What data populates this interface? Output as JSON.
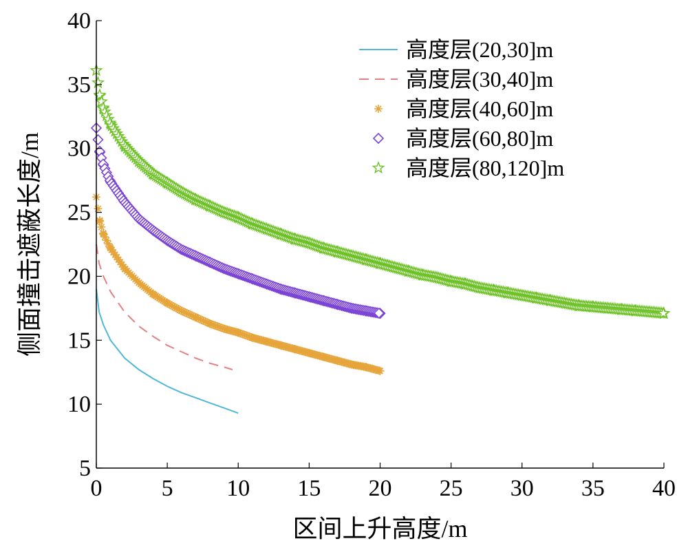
{
  "chart_data": {
    "type": "scatter",
    "title": "",
    "xlabel": "区间上升高度/m",
    "ylabel": "侧面撞击遮蔽长度/m",
    "xlim": [
      0,
      40
    ],
    "ylim": [
      5,
      40
    ],
    "xticks": [
      "0",
      "5",
      "10",
      "15",
      "20",
      "25",
      "30",
      "35",
      "40"
    ],
    "yticks": [
      "5",
      "10",
      "15",
      "20",
      "25",
      "30",
      "35",
      "40"
    ],
    "grid": false,
    "legend_position": "top-right",
    "series": [
      {
        "name": "高度层(20,30]m",
        "style": "solid-line",
        "color": "#4fb8d8",
        "x": [
          0,
          0.2,
          0.5,
          1,
          2,
          3,
          4,
          5,
          6,
          7,
          8,
          9,
          10
        ],
        "y": [
          19.0,
          17.2,
          16.2,
          15.0,
          13.6,
          12.7,
          12.0,
          11.4,
          10.9,
          10.5,
          10.1,
          9.7,
          9.3
        ]
      },
      {
        "name": "高度层(30,40]m",
        "style": "dashed-line",
        "color": "#e48080",
        "x": [
          0,
          0.2,
          0.5,
          1,
          2,
          3,
          4,
          5,
          6,
          7,
          8,
          9,
          9.6
        ],
        "y": [
          22.5,
          21.0,
          20.0,
          18.8,
          17.2,
          16.1,
          15.3,
          14.6,
          14.1,
          13.6,
          13.2,
          12.9,
          12.7
        ]
      },
      {
        "name": "高度层(40,60]m",
        "style": "asterisk-marker",
        "color": "#e6a53a",
        "x": [
          0,
          0.25,
          0.5,
          1,
          2,
          3,
          4,
          5,
          6,
          7,
          8,
          9,
          10,
          11,
          12,
          13,
          14,
          15,
          16,
          17,
          18,
          19,
          20
        ],
        "y": [
          26.2,
          24.3,
          23.3,
          22.2,
          20.6,
          19.5,
          18.6,
          17.9,
          17.3,
          16.8,
          16.3,
          15.9,
          15.6,
          15.2,
          14.9,
          14.6,
          14.3,
          14.0,
          13.7,
          13.4,
          13.1,
          12.9,
          12.6
        ]
      },
      {
        "name": "高度层(60,80]m",
        "style": "diamond-marker",
        "color": "#7b43d6",
        "x": [
          0,
          0.25,
          0.5,
          1,
          2,
          3,
          4,
          5,
          6,
          7,
          8,
          9,
          10,
          11,
          12,
          13,
          14,
          15,
          16,
          17,
          18,
          19,
          20
        ],
        "y": [
          31.6,
          29.7,
          28.7,
          27.4,
          25.8,
          24.5,
          23.6,
          22.8,
          22.1,
          21.6,
          21.1,
          20.6,
          20.2,
          19.8,
          19.4,
          19.0,
          18.7,
          18.4,
          18.1,
          17.8,
          17.5,
          17.3,
          17.1
        ]
      },
      {
        "name": "高度层(80,120]m",
        "style": "star-marker",
        "color": "#6cc124",
        "x": [
          0,
          0.25,
          0.5,
          1,
          2,
          3,
          4,
          5,
          6,
          7,
          8,
          9,
          10,
          11,
          12,
          13,
          14,
          15,
          16,
          17,
          18,
          19,
          20,
          21,
          22,
          23,
          24,
          25,
          26,
          27,
          28,
          29,
          30,
          31,
          32,
          33,
          34,
          35,
          36,
          37,
          38,
          39,
          40
        ],
        "y": [
          36.1,
          34.1,
          33.1,
          31.9,
          30.2,
          29.0,
          28.0,
          27.3,
          26.6,
          26.0,
          25.5,
          25.0,
          24.6,
          24.1,
          23.7,
          23.3,
          22.9,
          22.6,
          22.2,
          21.9,
          21.6,
          21.3,
          21.0,
          20.7,
          20.4,
          20.1,
          19.9,
          19.6,
          19.4,
          19.1,
          18.9,
          18.7,
          18.5,
          18.3,
          18.1,
          17.9,
          17.7,
          17.6,
          17.5,
          17.4,
          17.3,
          17.2,
          17.1
        ]
      }
    ]
  }
}
